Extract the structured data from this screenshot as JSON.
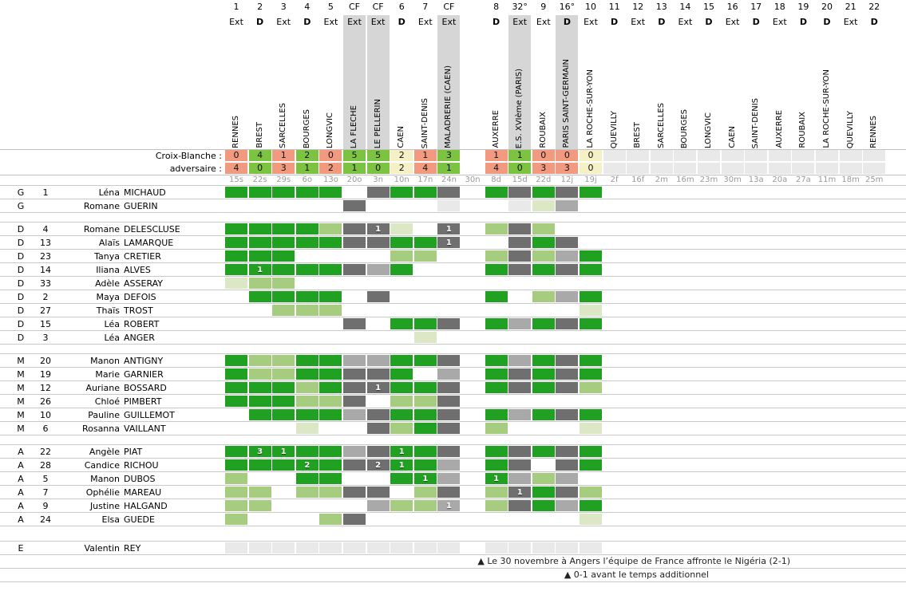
{
  "colors": {
    "participation_full": "#21a121",
    "participation_partial": "#a6cc80",
    "participation_brief": "#dbe7c5",
    "bench_dark_gray": "#6f6f6f",
    "bench_mid_gray": "#a9a9a9",
    "squad_light_gray": "#e9e9e9",
    "cup_column_band": "#d6d6d6",
    "score_win": "#7cc342",
    "score_loss": "#f29a80",
    "score_draw": "#f6f0c6"
  },
  "header": {
    "team_score_label": "Croix-Blanche :",
    "opponent_score_label": "adversaire :"
  },
  "columns": [
    {
      "num": "1",
      "venue": "Ext",
      "band": false,
      "opponent": "RENNES",
      "date": "15s",
      "result": "loss",
      "team_score": "0",
      "opp_score": "4"
    },
    {
      "num": "2",
      "venue": "D",
      "band": false,
      "opponent": "BREST",
      "date": "22s",
      "result": "win",
      "team_score": "4",
      "opp_score": "0"
    },
    {
      "num": "3",
      "venue": "Ext",
      "band": false,
      "opponent": "SARCELLES",
      "date": "29s",
      "result": "loss",
      "team_score": "1",
      "opp_score": "3"
    },
    {
      "num": "4",
      "venue": "D",
      "band": false,
      "opponent": "BOURGES",
      "date": "6o",
      "result": "win",
      "team_score": "2",
      "opp_score": "1"
    },
    {
      "num": "5",
      "venue": "Ext",
      "band": false,
      "opponent": "LONGVIC",
      "date": "13o",
      "result": "loss",
      "team_score": "0",
      "opp_score": "2"
    },
    {
      "num": "CF",
      "venue": "Ext",
      "band": true,
      "opponent": "LA FLECHE",
      "date": "20o",
      "result": "win",
      "team_score": "5",
      "opp_score": "1"
    },
    {
      "num": "CF",
      "venue": "Ext",
      "band": true,
      "opponent": "LE PELLERIN",
      "date": "3n",
      "result": "win",
      "team_score": "5",
      "opp_score": "0"
    },
    {
      "num": "6",
      "venue": "D",
      "band": false,
      "opponent": "CAEN",
      "date": "10n",
      "result": "draw",
      "team_score": "2",
      "opp_score": "2"
    },
    {
      "num": "7",
      "venue": "Ext",
      "band": false,
      "opponent": "SAINT-DENIS",
      "date": "17n",
      "result": "loss",
      "team_score": "1",
      "opp_score": "4"
    },
    {
      "num": "CF",
      "venue": "Ext",
      "band": true,
      "opponent": "MALADRERIE (CAEN)",
      "date": "24n",
      "result": "win",
      "team_score": "3",
      "opp_score": "1"
    },
    {
      "num": "",
      "venue": "",
      "band": false,
      "opponent": "",
      "date": "30n",
      "result": "none",
      "team_score": "",
      "opp_score": ""
    },
    {
      "num": "8",
      "venue": "D",
      "band": false,
      "opponent": "AUXERRE",
      "date": "8d",
      "result": "loss",
      "team_score": "1",
      "opp_score": "4"
    },
    {
      "num": "32°",
      "venue": "Ext",
      "band": true,
      "opponent": "E.S. XVIème (PARIS)",
      "date": "15d",
      "result": "win",
      "team_score": "1",
      "opp_score": "0"
    },
    {
      "num": "9",
      "venue": "Ext",
      "band": false,
      "opponent": "ROUBAIX",
      "date": "22d",
      "result": "loss",
      "team_score": "0",
      "opp_score": "3"
    },
    {
      "num": "16°",
      "venue": "D",
      "band": true,
      "opponent": "PARIS SAINT-GERMAIN",
      "date": "12j",
      "result": "loss",
      "team_score": "0",
      "opp_score": "3"
    },
    {
      "num": "10",
      "venue": "Ext",
      "band": false,
      "opponent": "LA ROCHE-SUR-YON",
      "date": "19j",
      "result": "draw",
      "team_score": "0",
      "opp_score": "0"
    },
    {
      "num": "11",
      "venue": "D",
      "band": false,
      "opponent": "QUEVILLY",
      "date": "2f",
      "result": "future",
      "team_score": "",
      "opp_score": ""
    },
    {
      "num": "12",
      "venue": "Ext",
      "band": false,
      "opponent": "BREST",
      "date": "16f",
      "result": "future",
      "team_score": "",
      "opp_score": ""
    },
    {
      "num": "13",
      "venue": "D",
      "band": false,
      "opponent": "SARCELLES",
      "date": "2m",
      "result": "future",
      "team_score": "",
      "opp_score": ""
    },
    {
      "num": "14",
      "venue": "Ext",
      "band": false,
      "opponent": "BOURGES",
      "date": "16m",
      "result": "future",
      "team_score": "",
      "opp_score": ""
    },
    {
      "num": "15",
      "venue": "D",
      "band": false,
      "opponent": "LONGVIC",
      "date": "23m",
      "result": "future",
      "team_score": "",
      "opp_score": ""
    },
    {
      "num": "16",
      "venue": "Ext",
      "band": false,
      "opponent": "CAEN",
      "date": "30m",
      "result": "future",
      "team_score": "",
      "opp_score": ""
    },
    {
      "num": "17",
      "venue": "D",
      "band": false,
      "opponent": "SAINT-DENIS",
      "date": "13a",
      "result": "future",
      "team_score": "",
      "opp_score": ""
    },
    {
      "num": "18",
      "venue": "Ext",
      "band": false,
      "opponent": "AUXERRE",
      "date": "20a",
      "result": "future",
      "team_score": "",
      "opp_score": ""
    },
    {
      "num": "19",
      "venue": "D",
      "band": false,
      "opponent": "ROUBAIX",
      "date": "27a",
      "result": "future",
      "team_score": "",
      "opp_score": ""
    },
    {
      "num": "20",
      "venue": "D",
      "band": false,
      "opponent": "LA ROCHE-SUR-YON",
      "date": "11m",
      "result": "future",
      "team_score": "",
      "opp_score": ""
    },
    {
      "num": "21",
      "venue": "Ext",
      "band": false,
      "opponent": "QUEVILLY",
      "date": "18m",
      "result": "future",
      "team_score": "",
      "opp_score": ""
    },
    {
      "num": "22",
      "venue": "D",
      "band": false,
      "opponent": "RENNES",
      "date": "25m",
      "result": "future",
      "team_score": "",
      "opp_score": ""
    }
  ],
  "cell_legend": {
    "F": "full-match-green",
    "M": "partial-match-medium-green",
    "P": "brief-appearance-pale-green",
    "D": "dark-gray",
    "G": "mid-gray",
    "L": "light-gray",
    "W": "empty",
    "digit_suffix": "goals-scored"
  },
  "sections": [
    {
      "rows": [
        {
          "pos": "G",
          "num": "1",
          "first": "Léna",
          "last": "MICHAUD",
          "cells": [
            "F",
            "F",
            "F",
            "F",
            "F",
            "W",
            "D",
            "F",
            "F",
            "D",
            "W",
            "F",
            "D",
            "F",
            "D",
            "F"
          ]
        },
        {
          "pos": "G",
          "num": "",
          "first": "Romane",
          "last": "GUERIN",
          "cells": [
            "W",
            "W",
            "W",
            "W",
            "W",
            "D",
            "W",
            "W",
            "W",
            "L",
            "W",
            "W",
            "L",
            "P",
            "G",
            "W"
          ]
        }
      ]
    },
    {
      "rows": [
        {
          "pos": "D",
          "num": "4",
          "first": "Romane",
          "last": "DELESCLUSE",
          "cells": [
            "F",
            "F",
            "F",
            "F",
            "M",
            "D",
            "D1",
            "P",
            "W",
            "D1",
            "W",
            "M",
            "D",
            "M",
            "W",
            "W"
          ]
        },
        {
          "pos": "D",
          "num": "13",
          "first": "Alaïs",
          "last": "LAMARQUE",
          "cells": [
            "F",
            "F",
            "F",
            "F",
            "F",
            "D",
            "D",
            "F",
            "F",
            "D1",
            "W",
            "W",
            "D",
            "F",
            "D",
            "W"
          ]
        },
        {
          "pos": "D",
          "num": "23",
          "first": "Tanya",
          "last": "CRETIER",
          "cells": [
            "F",
            "F",
            "F",
            "W",
            "W",
            "W",
            "W",
            "M",
            "M",
            "W",
            "W",
            "M",
            "D",
            "M",
            "G",
            "F"
          ]
        },
        {
          "pos": "D",
          "num": "14",
          "first": "Iliana",
          "last": "ALVES",
          "cells": [
            "F",
            "F1",
            "F",
            "F",
            "F",
            "D",
            "G",
            "F",
            "W",
            "W",
            "W",
            "F",
            "D",
            "F",
            "D",
            "F"
          ]
        },
        {
          "pos": "D",
          "num": "33",
          "first": "Adèle",
          "last": "ASSERAY",
          "cells": [
            "P",
            "M",
            "M",
            "W",
            "W",
            "W",
            "W",
            "W",
            "W",
            "W",
            "W",
            "W",
            "W",
            "W",
            "W",
            "W"
          ]
        },
        {
          "pos": "D",
          "num": "2",
          "first": "Maya",
          "last": "DEFOIS",
          "cells": [
            "W",
            "F",
            "F",
            "F",
            "F",
            "W",
            "D",
            "W",
            "W",
            "W",
            "W",
            "F",
            "W",
            "M",
            "G",
            "F"
          ]
        },
        {
          "pos": "D",
          "num": "27",
          "first": "Thaïs",
          "last": "TROST",
          "cells": [
            "W",
            "W",
            "M",
            "M",
            "M",
            "W",
            "W",
            "W",
            "W",
            "W",
            "W",
            "W",
            "W",
            "W",
            "W",
            "P"
          ]
        },
        {
          "pos": "D",
          "num": "15",
          "first": "Léa",
          "last": "ROBERT",
          "cells": [
            "W",
            "W",
            "W",
            "W",
            "W",
            "D",
            "W",
            "F",
            "F",
            "D",
            "W",
            "F",
            "G",
            "F",
            "D",
            "F"
          ]
        },
        {
          "pos": "D",
          "num": "3",
          "first": "Léa",
          "last": "ANGER",
          "cells": [
            "W",
            "W",
            "W",
            "W",
            "W",
            "W",
            "W",
            "W",
            "P",
            "W",
            "W",
            "W",
            "W",
            "W",
            "W",
            "W"
          ]
        }
      ]
    },
    {
      "rows": [
        {
          "pos": "M",
          "num": "20",
          "first": "Manon",
          "last": "ANTIGNY",
          "cells": [
            "F",
            "M",
            "M",
            "F",
            "F",
            "G",
            "G",
            "F",
            "F",
            "D",
            "W",
            "F",
            "G",
            "F",
            "D",
            "F"
          ]
        },
        {
          "pos": "M",
          "num": "19",
          "first": "Marie",
          "last": "GARNIER",
          "cells": [
            "F",
            "M",
            "M",
            "F",
            "F",
            "D",
            "D",
            "F",
            "W",
            "G",
            "W",
            "F",
            "D",
            "F",
            "D",
            "F"
          ]
        },
        {
          "pos": "M",
          "num": "12",
          "first": "Auriane",
          "last": "BOSSARD",
          "cells": [
            "F",
            "F",
            "F",
            "M",
            "F",
            "D",
            "D1",
            "F",
            "F",
            "D",
            "W",
            "F",
            "D",
            "F",
            "D",
            "M"
          ]
        },
        {
          "pos": "M",
          "num": "26",
          "first": "Chloé",
          "last": "PIMBERT",
          "cells": [
            "F",
            "F",
            "F",
            "M",
            "M",
            "D",
            "W",
            "M",
            "M",
            "D",
            "W",
            "W",
            "W",
            "W",
            "W",
            "W"
          ]
        },
        {
          "pos": "M",
          "num": "10",
          "first": "Pauline",
          "last": "GUILLEMOT",
          "cells": [
            "W",
            "F",
            "F",
            "F",
            "F",
            "G",
            "D",
            "F",
            "F",
            "D",
            "W",
            "F",
            "G",
            "F",
            "D",
            "F"
          ]
        },
        {
          "pos": "M",
          "num": "6",
          "first": "Rosanna",
          "last": "VAILLANT",
          "cells": [
            "W",
            "W",
            "W",
            "P",
            "W",
            "W",
            "D",
            "M",
            "F",
            "D",
            "W",
            "M",
            "W",
            "W",
            "W",
            "P"
          ]
        }
      ]
    },
    {
      "rows": [
        {
          "pos": "A",
          "num": "22",
          "first": "Angèle",
          "last": "PIAT",
          "cells": [
            "F",
            "F3",
            "F1",
            "F",
            "F",
            "G",
            "D",
            "F1",
            "F",
            "D",
            "W",
            "F",
            "D",
            "F",
            "D",
            "F"
          ]
        },
        {
          "pos": "A",
          "num": "28",
          "first": "Candice",
          "last": "RICHOU",
          "cells": [
            "F",
            "F",
            "F",
            "F2",
            "F",
            "D",
            "D2",
            "F1",
            "F",
            "G",
            "W",
            "F",
            "D",
            "W",
            "D",
            "F"
          ]
        },
        {
          "pos": "A",
          "num": "5",
          "first": "Manon",
          "last": "DUBOS",
          "cells": [
            "M",
            "W",
            "W",
            "F",
            "F",
            "W",
            "W",
            "F",
            "F1",
            "G",
            "W",
            "F1",
            "G",
            "M",
            "G",
            "W"
          ]
        },
        {
          "pos": "A",
          "num": "7",
          "first": "Ophélie",
          "last": "MAREAU",
          "cells": [
            "M",
            "M",
            "W",
            "M",
            "M",
            "D",
            "D",
            "W",
            "M",
            "D",
            "W",
            "M",
            "D1",
            "F",
            "D",
            "M"
          ]
        },
        {
          "pos": "A",
          "num": "9",
          "first": "Justine",
          "last": "HALGAND",
          "cells": [
            "M",
            "M",
            "W",
            "W",
            "W",
            "W",
            "G",
            "M",
            "M",
            "G1",
            "W",
            "M",
            "D",
            "F",
            "G",
            "F"
          ]
        },
        {
          "pos": "A",
          "num": "24",
          "first": "Elsa",
          "last": "GUEDE",
          "cells": [
            "M",
            "W",
            "W",
            "W",
            "M",
            "D",
            "W",
            "W",
            "W",
            "W",
            "W",
            "W",
            "W",
            "W",
            "W",
            "P"
          ]
        }
      ]
    },
    {
      "rows": [
        {
          "pos": "E",
          "num": "",
          "first": "Valentin",
          "last": "REY",
          "cells": [
            "L",
            "L",
            "L",
            "L",
            "L",
            "L",
            "L",
            "L",
            "L",
            "L",
            "W",
            "L",
            "L",
            "L",
            "L",
            "L"
          ]
        }
      ]
    }
  ],
  "notes": {
    "n1": "▲ Le 30 novembre à Angers l’équipe de France affronte le Nigéria (2-1)",
    "n2": "▲ 0-1 avant le temps additionnel"
  }
}
